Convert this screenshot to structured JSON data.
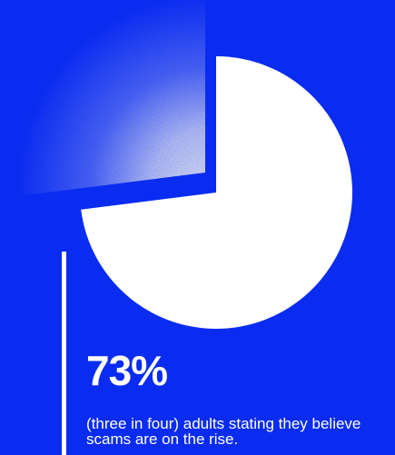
{
  "colors": {
    "background": "#0a2cf0",
    "pie_fill": "#ffffff",
    "accent": "#ffffff"
  },
  "chart_data": {
    "type": "pie",
    "title": "",
    "slices": [
      {
        "label": "adults stating they believe scams are on the rise",
        "value": 73,
        "style": "solid"
      },
      {
        "label": "",
        "value": 27,
        "style": "exploded-gradient"
      }
    ],
    "data_label": "73%"
  },
  "stat": {
    "value": "73%",
    "caption": "(three in four) adults stating they believe scams are on the rise."
  }
}
